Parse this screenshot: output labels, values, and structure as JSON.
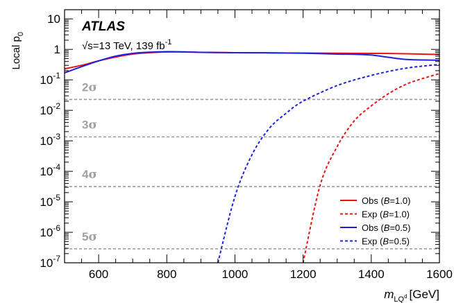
{
  "chart_data": {
    "type": "line",
    "title": "",
    "experiment": "ATLAS",
    "energy_label": "√s=13 TeV, 139 fb",
    "energy_label_sup": "-1",
    "xlabel_main": "m",
    "xlabel_sub": "LQ",
    "xlabel_subsub": "d",
    "xlabel_unit": "[GeV]",
    "ylabel_main": "Local p",
    "ylabel_sub": "0",
    "xlim": [
      500,
      1600
    ],
    "ylim": [
      1e-07,
      20
    ],
    "y_scale": "log",
    "x_ticks": [
      600,
      800,
      1000,
      1200,
      1400,
      1600
    ],
    "y_ticks": [
      {
        "value": 1e-07,
        "base": "10",
        "exp": "-7"
      },
      {
        "value": 1e-06,
        "base": "10",
        "exp": "-6"
      },
      {
        "value": 1e-05,
        "base": "10",
        "exp": "-5"
      },
      {
        "value": 0.0001,
        "base": "10",
        "exp": "-4"
      },
      {
        "value": 0.001,
        "base": "10",
        "exp": "-3"
      },
      {
        "value": 0.01,
        "base": "10",
        "exp": "-2"
      },
      {
        "value": 0.1,
        "base": "10",
        "exp": "-1"
      },
      {
        "value": 1,
        "base": "1",
        "exp": ""
      },
      {
        "value": 10,
        "base": "10",
        "exp": ""
      }
    ],
    "sigma_lines": [
      {
        "label": "2",
        "symbol": "σ",
        "p": 0.02275
      },
      {
        "label": "3",
        "symbol": "σ",
        "p": 0.00135
      },
      {
        "label": "4",
        "symbol": "σ",
        "p": 3.17e-05
      },
      {
        "label": "5",
        "symbol": "σ",
        "p": 2.87e-07
      }
    ],
    "legend_position": "bottom-right",
    "series": [
      {
        "name": "Obs",
        "name_suffix": "=1.0)",
        "style": "solid",
        "color": "#ee1111",
        "x": [
          500,
          550,
          600,
          650,
          700,
          750,
          800,
          850,
          900,
          1000,
          1100,
          1200,
          1300,
          1400,
          1500,
          1600
        ],
        "y": [
          0.23,
          0.3,
          0.42,
          0.56,
          0.7,
          0.78,
          0.82,
          0.82,
          0.8,
          0.78,
          0.77,
          0.76,
          0.75,
          0.74,
          0.72,
          0.68
        ]
      },
      {
        "name": "Exp",
        "name_suffix": "=1.0)",
        "style": "dashed",
        "color": "#ee1111",
        "x": [
          1200,
          1250,
          1300,
          1350,
          1400,
          1450,
          1500,
          1550,
          1600
        ],
        "y": [
          1e-07,
          3.5e-05,
          0.00065,
          0.0045,
          0.014,
          0.035,
          0.07,
          0.11,
          0.16
        ]
      },
      {
        "name": "Obs",
        "name_suffix": "=0.5)",
        "style": "solid",
        "color": "#1a22dd",
        "x": [
          500,
          550,
          600,
          650,
          700,
          750,
          800,
          850,
          900,
          1000,
          1100,
          1200,
          1300,
          1350,
          1400,
          1450,
          1500,
          1550,
          1600
        ],
        "y": [
          0.17,
          0.27,
          0.42,
          0.6,
          0.74,
          0.81,
          0.84,
          0.83,
          0.8,
          0.78,
          0.77,
          0.75,
          0.7,
          0.69,
          0.65,
          0.55,
          0.47,
          0.45,
          0.44
        ]
      },
      {
        "name": "Exp",
        "name_suffix": "=0.5)",
        "style": "dashed",
        "color": "#1a22dd",
        "x": [
          950,
          1000,
          1050,
          1100,
          1150,
          1200,
          1300,
          1400,
          1500,
          1600
        ],
        "y": [
          1e-07,
          1.5e-05,
          0.00035,
          0.0025,
          0.008,
          0.02,
          0.065,
          0.14,
          0.24,
          0.32
        ]
      }
    ],
    "legend_symbol": "B",
    "legend_paren": "("
  }
}
